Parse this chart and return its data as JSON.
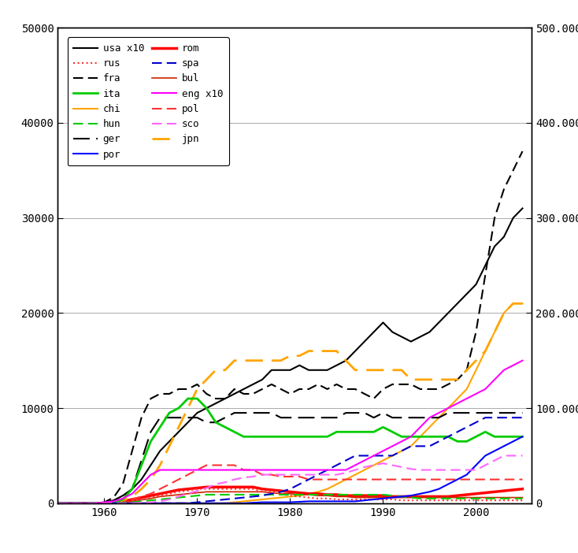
{
  "years": [
    1955,
    1956,
    1957,
    1958,
    1959,
    1960,
    1961,
    1962,
    1963,
    1964,
    1965,
    1966,
    1967,
    1968,
    1969,
    1970,
    1971,
    1972,
    1973,
    1974,
    1975,
    1976,
    1977,
    1978,
    1979,
    1980,
    1981,
    1982,
    1983,
    1984,
    1985,
    1986,
    1987,
    1988,
    1989,
    1990,
    1991,
    1992,
    1993,
    1994,
    1995,
    1996,
    1997,
    1998,
    1999,
    2000,
    2001,
    2002,
    2003,
    2004,
    2005
  ],
  "series": {
    "usa": [
      0,
      0,
      0,
      0,
      0,
      50,
      300,
      800,
      1500,
      2500,
      4000,
      5500,
      6500,
      7500,
      8500,
      9500,
      10000,
      10500,
      11000,
      11500,
      12000,
      12500,
      13000,
      14000,
      14000,
      14000,
      14500,
      14000,
      14000,
      14000,
      14500,
      15000,
      16000,
      17000,
      18000,
      19000,
      18000,
      17500,
      17000,
      17500,
      18000,
      19000,
      20000,
      21000,
      22000,
      23000,
      25000,
      27000,
      28000,
      30000,
      31000
    ],
    "fra": [
      0,
      0,
      0,
      0,
      0,
      100,
      600,
      2000,
      5500,
      9000,
      11000,
      11500,
      11500,
      12000,
      12000,
      12500,
      11500,
      11000,
      11000,
      12000,
      11500,
      11500,
      12000,
      12500,
      12000,
      11500,
      12000,
      12000,
      12500,
      12000,
      12500,
      12000,
      12000,
      11500,
      11000,
      12000,
      12500,
      12500,
      12500,
      12000,
      12000,
      12000,
      12500,
      13000,
      14000,
      18000,
      24000,
      30000,
      33000,
      35000,
      37000
    ],
    "chi": [
      0,
      0,
      0,
      0,
      0,
      0,
      0,
      0,
      0,
      0,
      0,
      0,
      0,
      0,
      0,
      0,
      0,
      0,
      0,
      100,
      200,
      300,
      400,
      500,
      600,
      700,
      800,
      1000,
      1200,
      1500,
      2000,
      2500,
      3000,
      3500,
      4000,
      4500,
      5000,
      5500,
      6000,
      7000,
      8000,
      9000,
      10000,
      11000,
      12000,
      14000,
      16000,
      18000,
      20000,
      21000,
      21000
    ],
    "ger": [
      0,
      0,
      0,
      0,
      0,
      50,
      200,
      500,
      1500,
      4500,
      7500,
      9000,
      9000,
      9000,
      9000,
      9000,
      8500,
      8500,
      9000,
      9500,
      9500,
      9500,
      9500,
      9500,
      9000,
      9000,
      9000,
      9000,
      9000,
      9000,
      9000,
      9500,
      9500,
      9500,
      9000,
      9500,
      9000,
      9000,
      9000,
      9000,
      9000,
      9000,
      9500,
      9500,
      9500,
      9500,
      9500,
      9500,
      9500,
      9500,
      9500
    ],
    "rom": [
      0,
      0,
      0,
      0,
      0,
      0,
      50,
      200,
      400,
      600,
      800,
      1000,
      1200,
      1400,
      1500,
      1600,
      1700,
      1700,
      1700,
      1700,
      1700,
      1700,
      1500,
      1400,
      1300,
      1200,
      1100,
      1000,
      1000,
      900,
      900,
      800,
      800,
      800,
      800,
      800,
      700,
      700,
      700,
      700,
      700,
      700,
      700,
      800,
      900,
      1000,
      1100,
      1200,
      1300,
      1400,
      1500
    ],
    "bul": [
      0,
      0,
      0,
      0,
      0,
      0,
      50,
      100,
      200,
      350,
      500,
      700,
      800,
      900,
      1000,
      1100,
      1200,
      1200,
      1200,
      1200,
      1200,
      1200,
      1200,
      1100,
      1000,
      1000,
      900,
      900,
      800,
      800,
      700,
      700,
      600,
      600,
      600,
      600,
      600,
      600,
      600,
      600,
      600,
      600,
      600,
      600,
      600,
      600,
      600,
      600,
      600,
      600,
      600
    ],
    "pol": [
      0,
      0,
      0,
      0,
      0,
      0,
      50,
      200,
      400,
      700,
      1000,
      1500,
      2000,
      2500,
      3000,
      3500,
      4000,
      4000,
      4000,
      4000,
      3500,
      3500,
      3000,
      3000,
      2800,
      2800,
      2800,
      2500,
      2500,
      2500,
      2500,
      2500,
      2500,
      2500,
      2500,
      2500,
      2500,
      2500,
      2500,
      2500,
      2500,
      2500,
      2500,
      2500,
      2500,
      2500,
      2500,
      2500,
      2500,
      2500,
      2500
    ],
    "jpn": [
      0,
      0,
      0,
      0,
      0,
      0,
      100,
      300,
      700,
      1500,
      2500,
      4000,
      6000,
      8000,
      10000,
      12000,
      13000,
      14000,
      14000,
      15000,
      15000,
      15000,
      15000,
      15000,
      15000,
      15500,
      15500,
      16000,
      16000,
      16000,
      16000,
      15000,
      14000,
      14000,
      14000,
      14000,
      14000,
      14000,
      13000,
      13000,
      13000,
      13000,
      13000,
      13000,
      14000,
      15000,
      16000,
      18000,
      20000,
      21000,
      21000
    ],
    "rus": [
      0,
      0,
      0,
      0,
      0,
      0,
      0,
      100,
      200,
      400,
      600,
      800,
      1000,
      1200,
      1300,
      1500,
      1500,
      1500,
      1500,
      1500,
      1500,
      1500,
      1200,
      1200,
      1000,
      800,
      700,
      600,
      500,
      500,
      400,
      400,
      400,
      400,
      400,
      400,
      400,
      300,
      300,
      300,
      300,
      300,
      300,
      300,
      300,
      300,
      300,
      300,
      300,
      300,
      300
    ],
    "ita": [
      0,
      0,
      0,
      0,
      0,
      0,
      100,
      400,
      1500,
      4000,
      6500,
      8000,
      9500,
      10000,
      11000,
      11000,
      10000,
      8500,
      8000,
      7500,
      7000,
      7000,
      7000,
      7000,
      7000,
      7000,
      7000,
      7000,
      7000,
      7000,
      7500,
      7500,
      7500,
      7500,
      7500,
      8000,
      7500,
      7000,
      7000,
      7000,
      7000,
      7000,
      7000,
      6500,
      6500,
      7000,
      7500,
      7000,
      7000,
      7000,
      7000
    ],
    "hun": [
      0,
      0,
      0,
      0,
      0,
      0,
      0,
      50,
      100,
      200,
      300,
      400,
      500,
      600,
      700,
      800,
      900,
      900,
      900,
      900,
      900,
      900,
      900,
      900,
      900,
      900,
      900,
      900,
      900,
      900,
      900,
      900,
      900,
      900,
      900,
      900,
      800,
      700,
      600,
      500,
      500,
      500,
      500,
      500,
      500,
      500,
      500,
      500,
      500,
      500,
      500
    ],
    "por": [
      0,
      0,
      0,
      0,
      0,
      0,
      0,
      0,
      0,
      0,
      0,
      0,
      0,
      0,
      0,
      0,
      0,
      0,
      0,
      0,
      0,
      50,
      100,
      100,
      100,
      100,
      150,
      200,
      200,
      200,
      200,
      200,
      200,
      300,
      400,
      500,
      600,
      700,
      800,
      1000,
      1200,
      1500,
      2000,
      2500,
      3000,
      4000,
      5000,
      5500,
      6000,
      6500,
      7000
    ],
    "spa": [
      0,
      0,
      0,
      0,
      0,
      0,
      0,
      0,
      0,
      0,
      0,
      0,
      0,
      0,
      0,
      100,
      200,
      300,
      400,
      500,
      600,
      700,
      800,
      1000,
      1200,
      1500,
      2000,
      2500,
      3000,
      3500,
      4000,
      4500,
      5000,
      5000,
      5000,
      5000,
      5000,
      5500,
      6000,
      6000,
      6000,
      6500,
      7000,
      7500,
      8000,
      8500,
      9000,
      9000,
      9000,
      9000,
      9000
    ],
    "eng": [
      0,
      0,
      0,
      0,
      0,
      100,
      200,
      500,
      1000,
      2000,
      3000,
      3500,
      3500,
      3500,
      3500,
      3500,
      3500,
      3500,
      3500,
      3500,
      3500,
      3500,
      3500,
      3500,
      3500,
      3500,
      3500,
      3500,
      3500,
      3500,
      3500,
      3500,
      4000,
      4500,
      5000,
      5500,
      6000,
      6500,
      7000,
      8000,
      9000,
      9500,
      10000,
      10500,
      11000,
      11500,
      12000,
      13000,
      14000,
      14500,
      15000
    ],
    "sco": [
      0,
      0,
      0,
      0,
      0,
      0,
      0,
      0,
      0,
      50,
      100,
      200,
      400,
      700,
      1000,
      1300,
      1600,
      2000,
      2200,
      2500,
      2700,
      2800,
      3000,
      3000,
      3000,
      3000,
      3000,
      3000,
      3000,
      3000,
      3000,
      3200,
      3500,
      3800,
      4000,
      4200,
      4000,
      3800,
      3600,
      3500,
      3500,
      3500,
      3500,
      3500,
      3500,
      3500,
      4000,
      4500,
      5000,
      5000,
      5000
    ]
  },
  "xlim": [
    1955,
    2006
  ],
  "ylim": [
    0,
    50000
  ],
  "right_ylim": [
    0,
    500000
  ],
  "right_yticks": [
    0,
    100000,
    200000,
    300000,
    400000,
    500000
  ],
  "right_yticklabels": [
    "0",
    "100.000",
    "200.000",
    "300.000",
    "400.000",
    "500.000"
  ],
  "left_yticks": [
    0,
    10000,
    20000,
    30000,
    40000,
    50000
  ],
  "left_yticklabels": [
    "0",
    "10000",
    "20000",
    "30000",
    "40000",
    "50000"
  ],
  "xticks": [
    1960,
    1970,
    1980,
    1990,
    2000
  ],
  "line_styles": {
    "usa": {
      "color": "#000000",
      "ls": "-",
      "lw": 1.5,
      "dashes": null
    },
    "fra": {
      "color": "#000000",
      "ls": "--",
      "lw": 1.5,
      "dashes": [
        6,
        3
      ]
    },
    "chi": {
      "color": "#FFA500",
      "ls": "-",
      "lw": 1.5,
      "dashes": null
    },
    "ger": {
      "color": "#000000",
      "ls": "--",
      "lw": 1.5,
      "dashes": [
        10,
        4
      ]
    },
    "rom": {
      "color": "#FF0000",
      "ls": "-",
      "lw": 2.5,
      "dashes": null
    },
    "bul": {
      "color": "#CC2200",
      "ls": "-",
      "lw": 1.2,
      "dashes": null
    },
    "pol": {
      "color": "#FF3333",
      "ls": "--",
      "lw": 1.5,
      "dashes": [
        6,
        3
      ]
    },
    "jpn": {
      "color": "#FFA500",
      "ls": "--",
      "lw": 2.0,
      "dashes": [
        8,
        4
      ]
    },
    "rus": {
      "color": "#FF3333",
      "ls": ":",
      "lw": 1.5,
      "dashes": null
    },
    "ita": {
      "color": "#00CC00",
      "ls": "-",
      "lw": 2.0,
      "dashes": null
    },
    "hun": {
      "color": "#00CC00",
      "ls": "--",
      "lw": 1.5,
      "dashes": [
        6,
        3
      ]
    },
    "por": {
      "color": "#0000FF",
      "ls": "-",
      "lw": 1.5,
      "dashes": null
    },
    "spa": {
      "color": "#0000CC",
      "ls": "--",
      "lw": 1.5,
      "dashes": [
        6,
        3
      ]
    },
    "eng": {
      "color": "#FF00FF",
      "ls": "-",
      "lw": 1.5,
      "dashes": null
    },
    "sco": {
      "color": "#FF66FF",
      "ls": "--",
      "lw": 1.5,
      "dashes": [
        6,
        3
      ]
    }
  },
  "left_col": [
    "usa",
    "fra",
    "chi",
    "ger",
    "rom",
    "bul",
    "pol",
    "jpn"
  ],
  "right_col": [
    "rus",
    "ita",
    "hun",
    "por",
    "spa",
    "eng",
    "sco"
  ],
  "legend_labels": {
    "usa": "usa x10",
    "fra": "fra",
    "chi": "chi",
    "ger": "ger",
    "rom": "rom",
    "bul": "bul",
    "pol": "pol",
    "jpn": "jpn",
    "rus": "rus",
    "ita": "ita",
    "hun": "hun",
    "por": "por",
    "spa": "spa",
    "eng": "eng x10",
    "sco": "sco"
  }
}
